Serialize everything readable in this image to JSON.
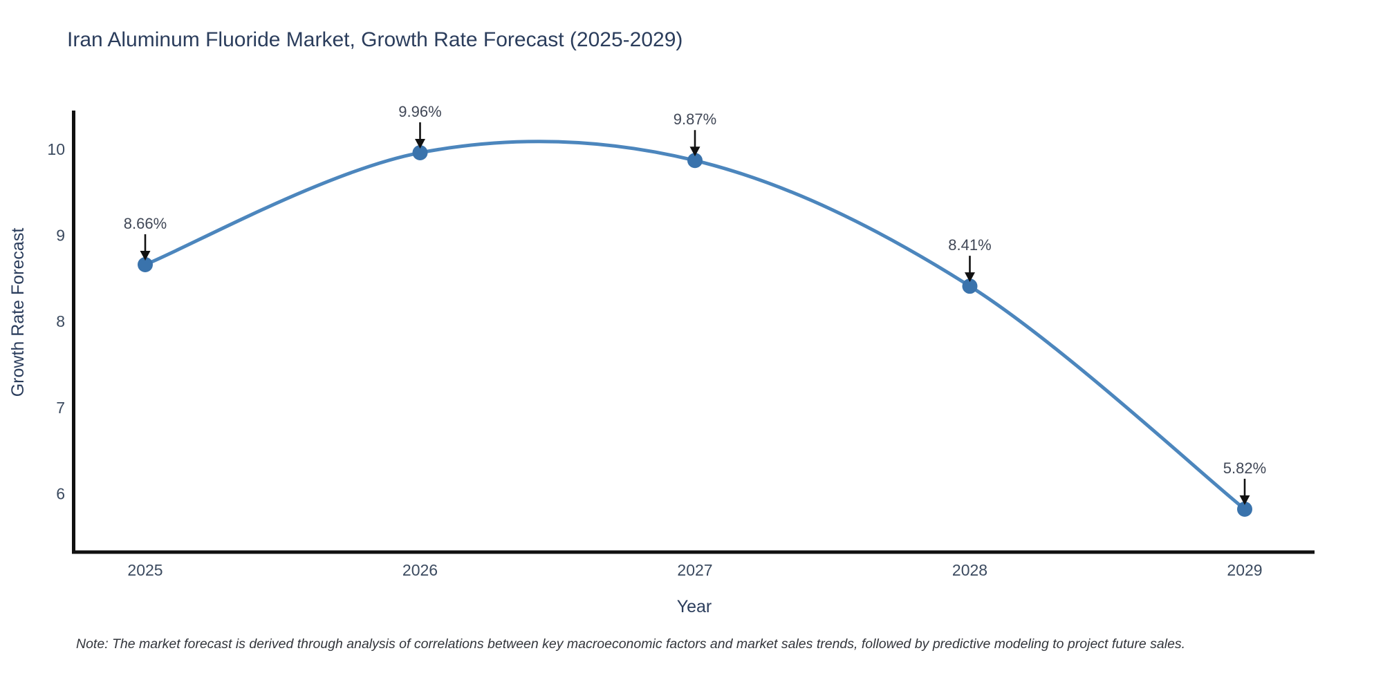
{
  "chart_data": {
    "type": "line",
    "title": "Iran Aluminum Fluoride Market, Growth Rate Forecast (2025-2029)",
    "xlabel": "Year",
    "ylabel": "Growth Rate Forecast",
    "x": [
      2025,
      2026,
      2027,
      2028,
      2029
    ],
    "series": [
      {
        "name": "Growth Rate Forecast",
        "values": [
          8.66,
          9.96,
          9.87,
          8.41,
          5.82
        ]
      }
    ],
    "point_labels": [
      "8.66%",
      "9.96%",
      "9.87%",
      "8.41%",
      "5.82%"
    ],
    "yticks": [
      6,
      7,
      8,
      9,
      10
    ],
    "xticks": [
      "2025",
      "2026",
      "2027",
      "2028",
      "2029"
    ],
    "ylim": [
      5.3,
      10.45
    ],
    "grid": false,
    "legend": "none",
    "line_shape": "spline",
    "note": "Note: The market forecast is derived through analysis of correlations between key macroeconomic factors and market sales trends, followed by predictive modeling to project future sales.",
    "colors": {
      "line": "#4c86bd",
      "marker": "#3a73ac",
      "axis": "#111111",
      "arrow": "#111111",
      "title_text": "#2b3d5c",
      "tick_text": "#3b4a5f",
      "annotation_text": "#404756",
      "background": "#ffffff"
    }
  }
}
